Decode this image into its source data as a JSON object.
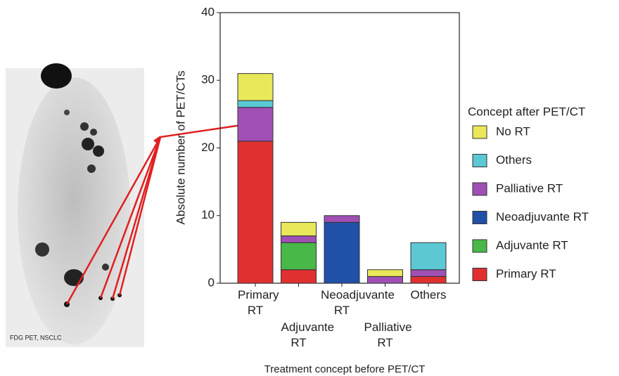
{
  "image_caption": "FDG PET, NSCLC",
  "chart_data": {
    "type": "stacked-bar",
    "x_label": "Treatment concept before PET/CT",
    "y_label": "Absolute number of PET/CTs",
    "legend_title": "Concept after PET/CT",
    "categories": [
      "Primary RT",
      "Adjuvante RT",
      "Neoadjuvante RT",
      "Palliative RT",
      "Others"
    ],
    "series": [
      {
        "name": "No RT",
        "color": "#e8e85a",
        "values": [
          4,
          2,
          0,
          1,
          0
        ]
      },
      {
        "name": "Others",
        "color": "#5bc8d4",
        "values": [
          1,
          0,
          0,
          0,
          4
        ]
      },
      {
        "name": "Palliative RT",
        "color": "#a050b4",
        "values": [
          5,
          1,
          1,
          1,
          1
        ]
      },
      {
        "name": "Neoadjuvante RT",
        "color": "#2050a8",
        "values": [
          0,
          0,
          9,
          0,
          0
        ]
      },
      {
        "name": "Adjuvante RT",
        "color": "#48b848",
        "values": [
          0,
          4,
          0,
          0,
          0
        ]
      },
      {
        "name": "Primary RT",
        "color": "#e03030",
        "values": [
          21,
          2,
          0,
          0,
          1
        ]
      }
    ],
    "ylim": [
      0,
      40
    ],
    "yticks": [
      0,
      10,
      20,
      30,
      40
    ],
    "legend": "right"
  }
}
